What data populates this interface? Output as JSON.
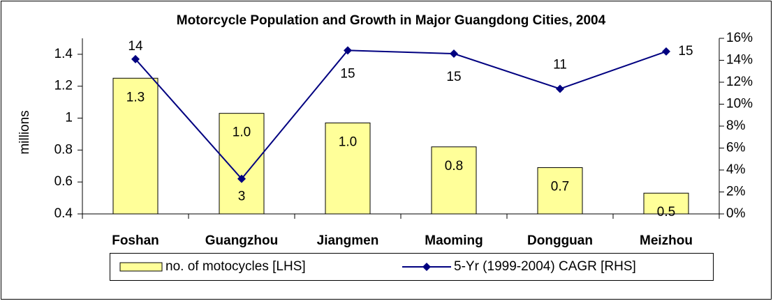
{
  "chart_data": {
    "type": "bar_line",
    "title": "Motorcycle Population and Growth in Major Guangdong Cities, 2004",
    "y_label": "millions",
    "categories": [
      "Foshan",
      "Guangzhou",
      "Jiangmen",
      "Maoming",
      "Dongguan",
      "Meizhou"
    ],
    "series": [
      {
        "name": "no. of motocycles [LHS]",
        "type": "bar",
        "color": "#ffff99",
        "values": [
          1.25,
          1.03,
          0.97,
          0.82,
          0.69,
          0.53
        ],
        "value_labels": [
          "1.3",
          "1.0",
          "1.0",
          "0.8",
          "0.7",
          "0.5"
        ]
      },
      {
        "name": "5-Yr (1999-2004) CAGR [RHS]",
        "type": "line",
        "axis": "y2",
        "color": "#000080",
        "values": [
          14.1,
          3.2,
          14.9,
          14.6,
          11.4,
          14.8
        ],
        "value_labels": [
          "14",
          "3",
          "15",
          "15",
          "11",
          "15"
        ]
      }
    ],
    "ylim": [
      0.4,
      1.5
    ],
    "yticks": [
      0.4,
      0.6,
      0.8,
      1,
      1.2,
      1.4
    ],
    "y2lim": [
      0,
      16
    ],
    "y2ticks": [
      {
        "value": 0,
        "label": "0%"
      },
      {
        "value": 2,
        "label": "2%"
      },
      {
        "value": 4,
        "label": "4%"
      },
      {
        "value": 6,
        "label": "6%"
      },
      {
        "value": 8,
        "label": "8%"
      },
      {
        "value": 10,
        "label": "10%"
      },
      {
        "value": 12,
        "label": "12%"
      },
      {
        "value": 14,
        "label": "14%"
      },
      {
        "value": 16,
        "label": "16%"
      }
    ],
    "legend": "bottom"
  }
}
